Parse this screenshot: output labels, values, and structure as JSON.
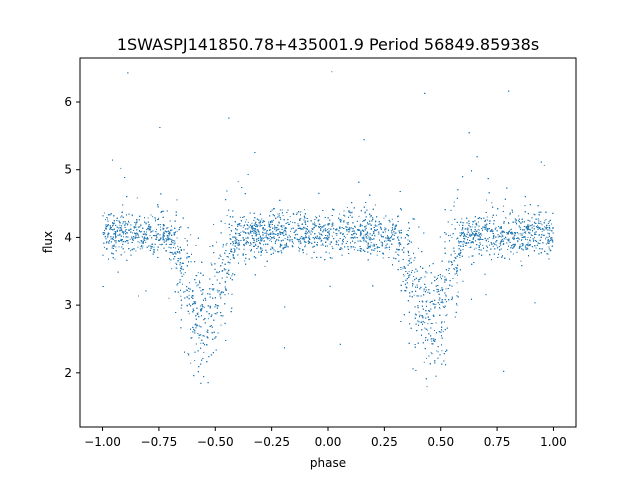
{
  "chart_data": {
    "type": "scatter",
    "title": "1SWASPJ141850.78+435001.9 Period 56849.85938s",
    "xlabel": "phase",
    "ylabel": "flux",
    "xlim": [
      -1.1,
      1.1
    ],
    "ylim": [
      1.2,
      6.65
    ],
    "x_ticks": [
      -1.0,
      -0.75,
      -0.5,
      -0.25,
      0.0,
      0.25,
      0.5,
      0.75,
      1.0
    ],
    "x_tick_labels": [
      "−1.00",
      "−0.75",
      "−0.50",
      "−0.25",
      "0.00",
      "0.25",
      "0.50",
      "0.75",
      "1.00"
    ],
    "y_ticks": [
      2,
      3,
      4,
      5,
      6
    ],
    "y_tick_labels": [
      "2",
      "3",
      "4",
      "5",
      "6"
    ],
    "grid": false,
    "marker_color": "#1f77b4",
    "series": [
      {
        "description_points": [
          {
            "x": -1.0,
            "y": 4.05
          },
          {
            "x": -0.9,
            "y": 4.05
          },
          {
            "x": -0.8,
            "y": 4.03
          },
          {
            "x": -0.7,
            "y": 4.0
          },
          {
            "x": -0.65,
            "y": 3.6
          },
          {
            "x": -0.6,
            "y": 3.0
          },
          {
            "x": -0.55,
            "y": 2.8
          },
          {
            "x": -0.5,
            "y": 3.0
          },
          {
            "x": -0.45,
            "y": 3.6
          },
          {
            "x": -0.4,
            "y": 4.0
          },
          {
            "x": -0.3,
            "y": 4.05
          },
          {
            "x": -0.2,
            "y": 4.07
          },
          {
            "x": -0.1,
            "y": 4.08
          },
          {
            "x": 0.0,
            "y": 4.08
          },
          {
            "x": 0.1,
            "y": 4.07
          },
          {
            "x": 0.2,
            "y": 4.05
          },
          {
            "x": 0.3,
            "y": 4.0
          },
          {
            "x": 0.35,
            "y": 3.6
          },
          {
            "x": 0.4,
            "y": 3.0
          },
          {
            "x": 0.45,
            "y": 2.8
          },
          {
            "x": 0.5,
            "y": 3.0
          },
          {
            "x": 0.55,
            "y": 3.6
          },
          {
            "x": 0.6,
            "y": 4.0
          },
          {
            "x": 0.7,
            "y": 4.03
          },
          {
            "x": 0.8,
            "y": 4.05
          },
          {
            "x": 0.9,
            "y": 4.05
          },
          {
            "x": 1.0,
            "y": 4.05
          }
        ]
      }
    ]
  }
}
